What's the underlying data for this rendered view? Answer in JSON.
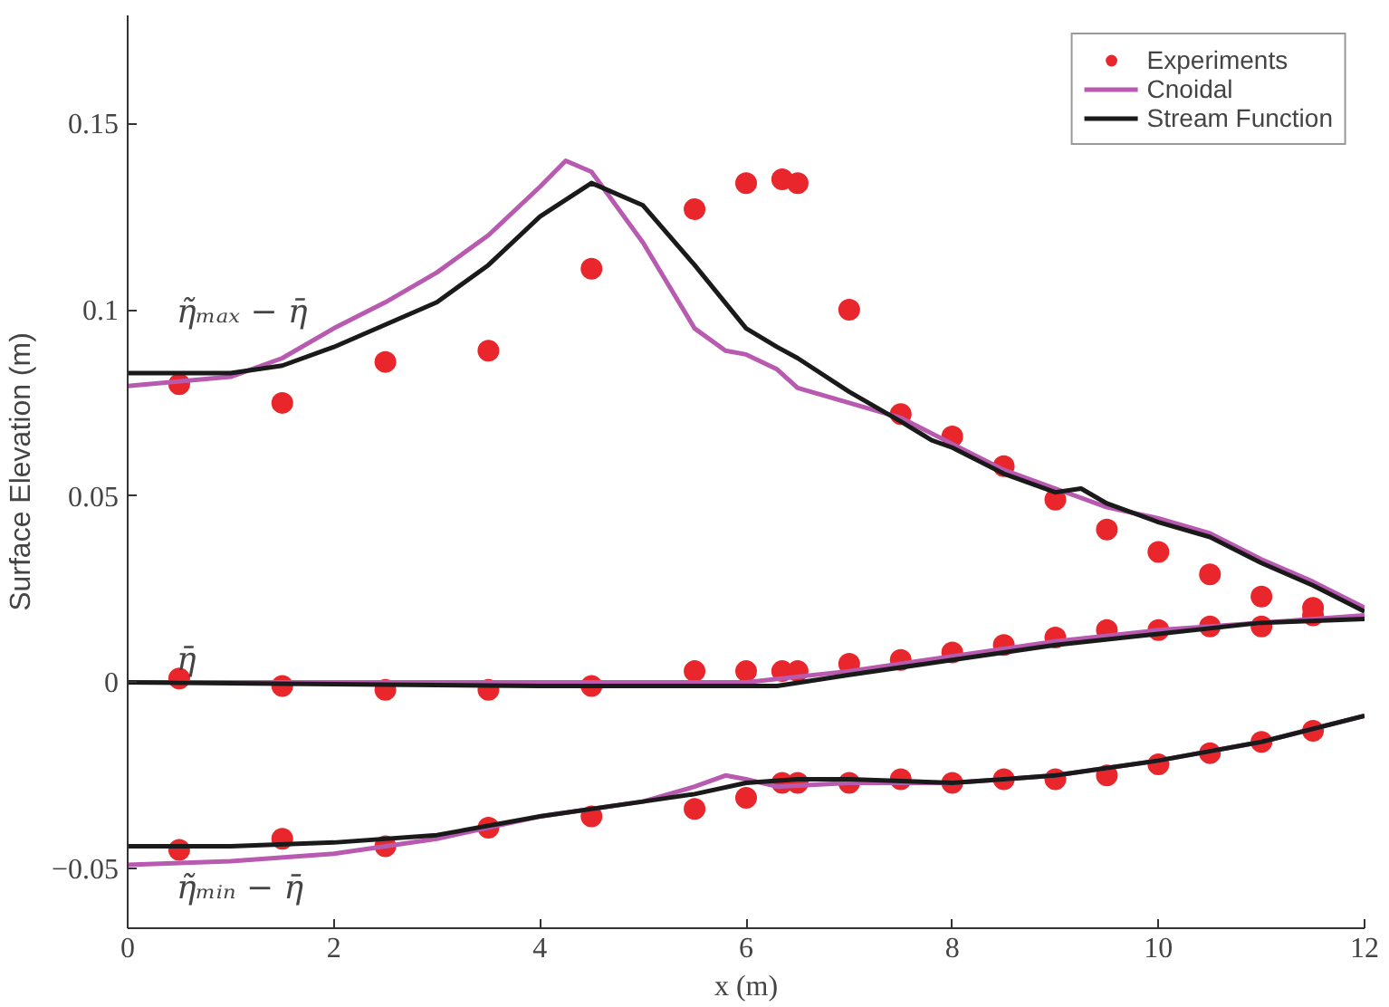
{
  "chart_data": {
    "type": "line",
    "xlabel": "x (m)",
    "ylabel": "Surface Elevation (m)",
    "xlim": [
      0,
      12
    ],
    "xticks": [
      0,
      2,
      4,
      6,
      8,
      10,
      12
    ],
    "ylim": [
      -0.066,
      0.179
    ],
    "yticks": [
      {
        "value": -0.05,
        "label": "−0.05"
      },
      0,
      0.05,
      0.1,
      0.15
    ],
    "grid": false,
    "legend": "top right",
    "series": [
      {
        "name": "Experiments",
        "type": "scatter",
        "marker": "circle",
        "color": "#e8262b",
        "x": [
          0.5,
          1.5,
          2.5,
          3.5,
          4.5,
          5.5,
          6,
          6.35,
          6.5,
          7,
          7.5,
          8,
          8.5,
          9,
          9.5,
          10,
          10.5,
          11,
          11.5,
          0.5,
          1.5,
          2.5,
          3.5,
          4.5,
          5.5,
          6,
          6.35,
          6.5,
          7,
          7.5,
          8,
          8.5,
          9,
          9.5,
          10,
          10.5,
          11,
          11.5,
          0.5,
          1.5,
          2.5,
          3.5,
          4.5,
          5.5,
          6,
          6.35,
          6.5,
          7,
          7.5,
          8,
          8.5,
          9,
          9.5,
          10,
          10.5,
          11,
          11.5
        ],
        "values": [
          0.08,
          0.075,
          0.086,
          0.089,
          0.111,
          0.127,
          0.134,
          0.135,
          0.134,
          0.1,
          0.072,
          0.066,
          0.058,
          0.049,
          0.041,
          0.035,
          0.029,
          0.023,
          0.02,
          0.001,
          -0.001,
          -0.002,
          -0.002,
          -0.001,
          0.003,
          0.003,
          0.003,
          0.003,
          0.005,
          0.006,
          0.008,
          0.01,
          0.012,
          0.014,
          0.014,
          0.015,
          0.015,
          0.018,
          -0.045,
          -0.042,
          -0.044,
          -0.039,
          -0.036,
          -0.034,
          -0.031,
          -0.027,
          -0.027,
          -0.027,
          -0.026,
          -0.027,
          -0.026,
          -0.026,
          -0.025,
          -0.022,
          -0.019,
          -0.016,
          -0.013
        ]
      },
      {
        "name": "Cnoidal",
        "color": "#b85aaf",
        "x": [
          0,
          1,
          1.5,
          2,
          2.5,
          3,
          3.5,
          4,
          4.25,
          4.5,
          5,
          5.5,
          5.8,
          6,
          6.3,
          6.5,
          7,
          7.5,
          8,
          8.5,
          9,
          9.5,
          10,
          10.5,
          11,
          11.5,
          12
        ],
        "values": [
          0.0795,
          0.082,
          0.087,
          0.095,
          0.102,
          0.11,
          0.12,
          0.133,
          0.14,
          0.137,
          0.118,
          0.095,
          0.089,
          0.088,
          0.084,
          0.079,
          0.075,
          0.071,
          0.064,
          0.057,
          0.052,
          0.047,
          0.044,
          0.04,
          0.033,
          0.027,
          0.02
        ]
      },
      {
        "name": "Stream Function",
        "color": "#1a1a1a",
        "x": [
          0,
          1,
          1.5,
          2,
          2.5,
          3,
          3.5,
          4,
          4.5,
          5,
          5.5,
          6,
          6.3,
          6.5,
          7,
          7.5,
          7.8,
          8,
          8.5,
          9,
          9.25,
          9.5,
          10,
          10.5,
          11,
          11.5,
          12
        ],
        "values": [
          0.083,
          0.083,
          0.085,
          0.09,
          0.096,
          0.102,
          0.112,
          0.125,
          0.134,
          0.128,
          0.112,
          0.095,
          0.09,
          0.087,
          0.078,
          0.07,
          0.065,
          0.063,
          0.056,
          0.051,
          0.052,
          0.048,
          0.043,
          0.039,
          0.032,
          0.026,
          0.019
        ]
      },
      {
        "color": "#b85aaf",
        "x": [
          0,
          5,
          6,
          7,
          8,
          9,
          10,
          11,
          12
        ],
        "values": [
          0.0,
          0.0,
          0.0,
          0.003,
          0.007,
          0.011,
          0.014,
          0.016,
          0.018
        ]
      },
      {
        "color": "#1a1a1a",
        "x": [
          0,
          4,
          5.5,
          6.3,
          7,
          8,
          9,
          10,
          11,
          12
        ],
        "values": [
          0.0,
          -0.001,
          -0.001,
          -0.001,
          0.002,
          0.006,
          0.01,
          0.013,
          0.016,
          0.017
        ]
      },
      {
        "color": "#b85aaf",
        "x": [
          0,
          1,
          2,
          3,
          4,
          5,
          5.5,
          5.8,
          6,
          6.3,
          7,
          8,
          8.5,
          9,
          10,
          11,
          12
        ],
        "values": [
          -0.049,
          -0.048,
          -0.046,
          -0.042,
          -0.036,
          -0.032,
          -0.028,
          -0.025,
          -0.026,
          -0.028,
          -0.027,
          -0.027,
          -0.026,
          -0.025,
          -0.021,
          -0.016,
          -0.009
        ]
      },
      {
        "color": "#1a1a1a",
        "x": [
          0,
          1,
          2,
          3,
          4,
          5,
          5.5,
          6,
          6.5,
          7,
          8,
          8.5,
          9,
          10,
          11,
          12
        ],
        "values": [
          -0.044,
          -0.044,
          -0.043,
          -0.041,
          -0.036,
          -0.032,
          -0.03,
          -0.027,
          -0.026,
          -0.026,
          -0.027,
          -0.026,
          -0.025,
          -0.021,
          -0.016,
          -0.009
        ]
      }
    ],
    "annotations": [
      "η̃ₘₐₓ − η̄",
      "η̄",
      "η̃ₘᵢₙ − η̄"
    ]
  }
}
